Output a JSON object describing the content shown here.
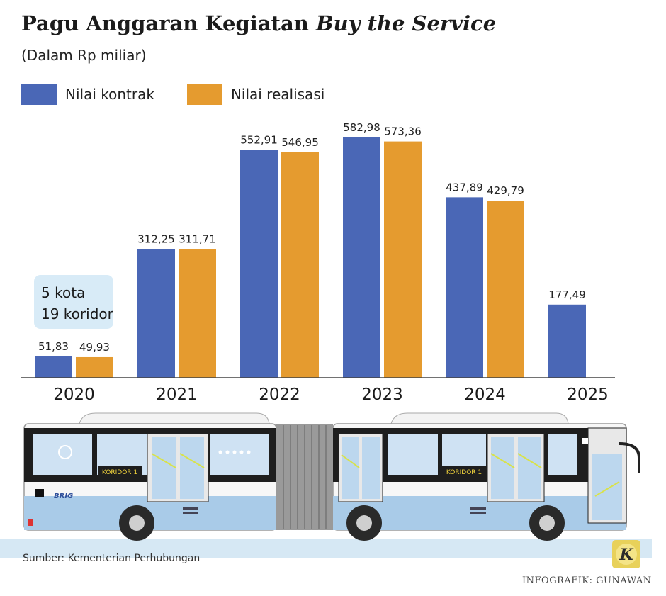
{
  "header": {
    "title": "Pagu Anggaran Kegiatan ",
    "title_italic": "Buy the Service",
    "subtitle": "(Dalam Rp miliar)"
  },
  "chart_data": {
    "type": "bar",
    "categories": [
      "2020",
      "2021",
      "2022",
      "2023",
      "2024",
      "2025"
    ],
    "series": [
      {
        "name": "Nilai kontrak",
        "values": [
          51.83,
          312.25,
          552.91,
          582.98,
          437.89,
          177.49
        ],
        "labels": [
          "51,83",
          "312,25",
          "552,91",
          "582,98",
          "437,89",
          "177,49"
        ]
      },
      {
        "name": "Nilai realisasi",
        "values": [
          49.93,
          311.71,
          546.95,
          573.36,
          429.79,
          null
        ],
        "labels": [
          "49,93",
          "311,71",
          "546,95",
          "573,36",
          "429,79",
          ""
        ]
      }
    ],
    "colors": [
      "#4a67b6",
      "#e59b2f"
    ],
    "ylim": [
      0,
      600
    ],
    "annotation": {
      "lines": [
        "5 kota",
        "19 koridor"
      ],
      "category": "2020"
    }
  },
  "illustration": {
    "bus_label": "KORIDOR 1",
    "logo": "BRIG"
  },
  "footer": {
    "source": "Sumber: Kementerian Perhubungan",
    "credit": "INFOGRAFIK: GUNAWAN",
    "badge_letter": "K"
  }
}
